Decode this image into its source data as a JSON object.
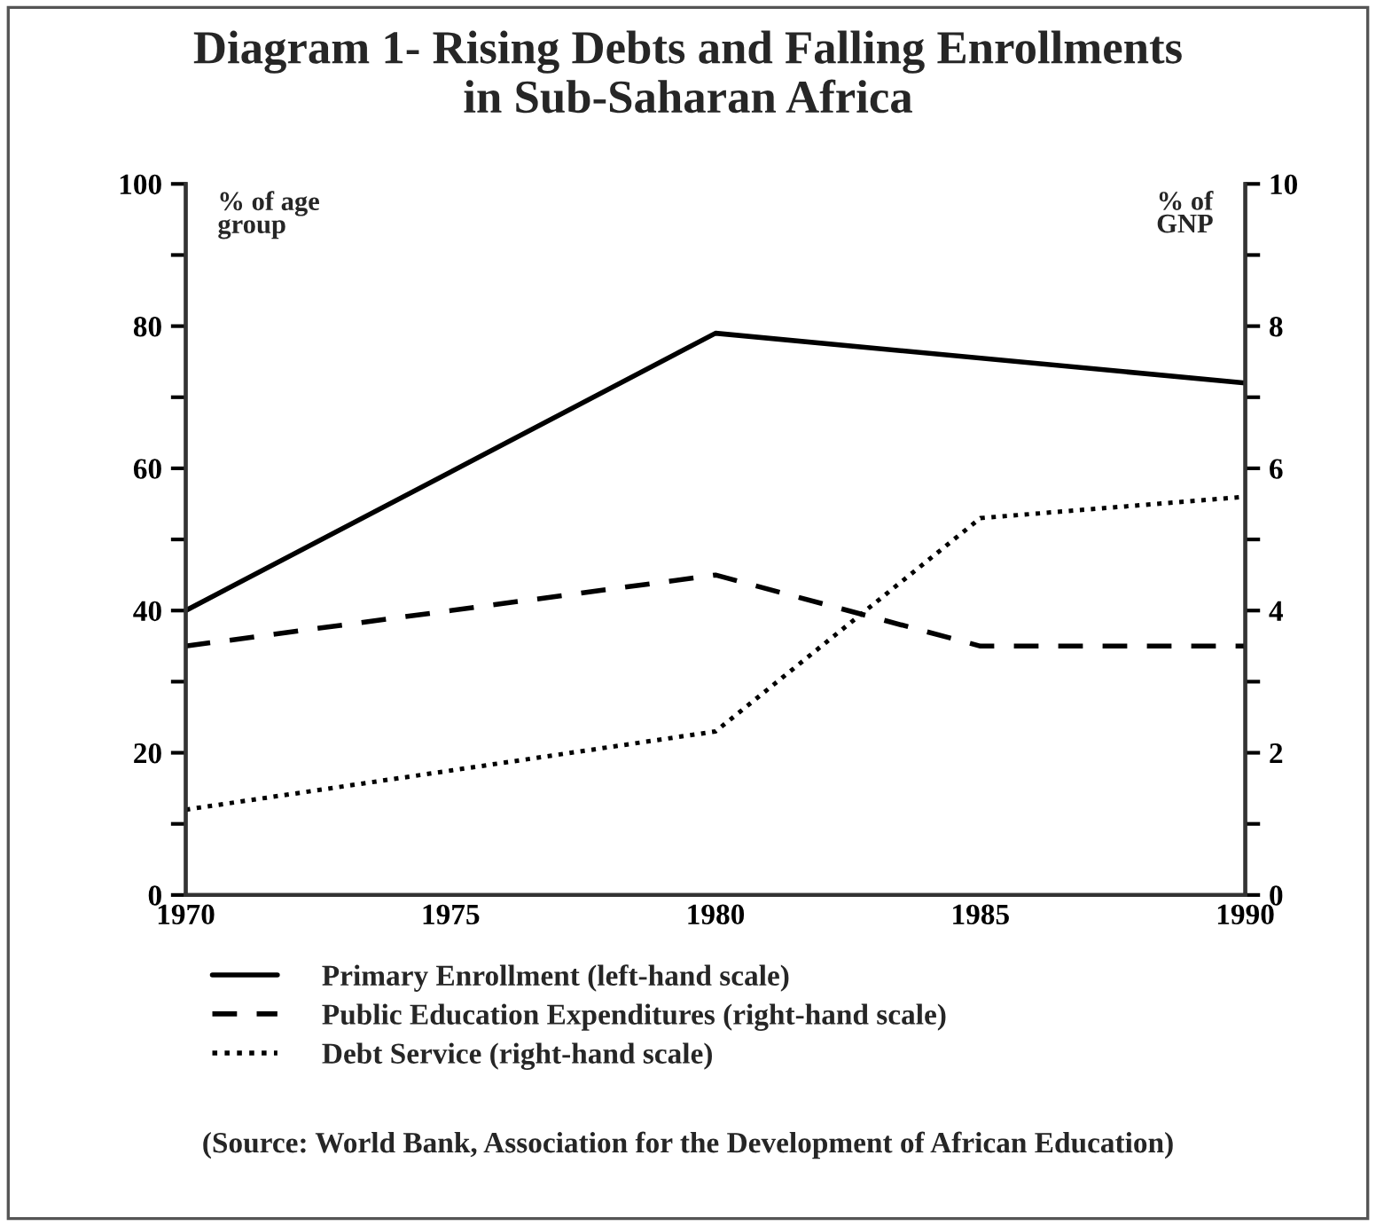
{
  "chart_data": {
    "type": "line",
    "title": "Diagram 1- Rising Debts and Falling Enrollments\nin Sub-Saharan Africa",
    "ylabel": "% of age\ngroup",
    "y2label": "% of\nGNP",
    "series": [
      {
        "name": "Primary Enrollment (left-hand scale)",
        "color": "#000000",
        "line_style": "solid",
        "x": [
          1970,
          1980,
          1990
        ],
        "values": [
          40,
          79,
          72
        ]
      },
      {
        "name": "Public Education Expenditures (right-hand scale)",
        "color": "#000000",
        "line_style": "dashed",
        "axis": "y2",
        "x": [
          1970,
          1980,
          1985,
          1990
        ],
        "values": [
          3.5,
          4.5,
          3.5,
          3.5
        ]
      },
      {
        "name": "Debt Service (right-hand scale)",
        "color": "#000000",
        "line_style": "dotted",
        "axis": "y2",
        "x": [
          1970,
          1980,
          1985,
          1990
        ],
        "values": [
          1.2,
          2.3,
          5.3,
          5.6
        ]
      }
    ],
    "xlim": [
      1970,
      1990
    ],
    "xticks": [
      1970,
      1975,
      1980,
      1985,
      1990
    ],
    "ylim": [
      0,
      100
    ],
    "yticks": [
      0,
      {
        "value": 10,
        "label": null
      },
      20,
      {
        "value": 30,
        "label": null
      },
      40,
      {
        "value": 50,
        "label": null
      },
      60,
      {
        "value": 70,
        "label": null
      },
      80,
      {
        "value": 90,
        "label": null
      },
      100
    ],
    "y2lim": [
      0,
      10
    ],
    "y2ticks": [
      0,
      {
        "value": 1,
        "label": null
      },
      2,
      {
        "value": 3,
        "label": null
      },
      4,
      {
        "value": 5,
        "label": null
      },
      6,
      {
        "value": 7,
        "label": null
      },
      8,
      {
        "value": 9,
        "label": null
      },
      10
    ],
    "grid": false,
    "legend": "bottom",
    "marker": "none",
    "annotations": [
      "(Source: World Bank, Association for the Development of African Education)"
    ]
  }
}
